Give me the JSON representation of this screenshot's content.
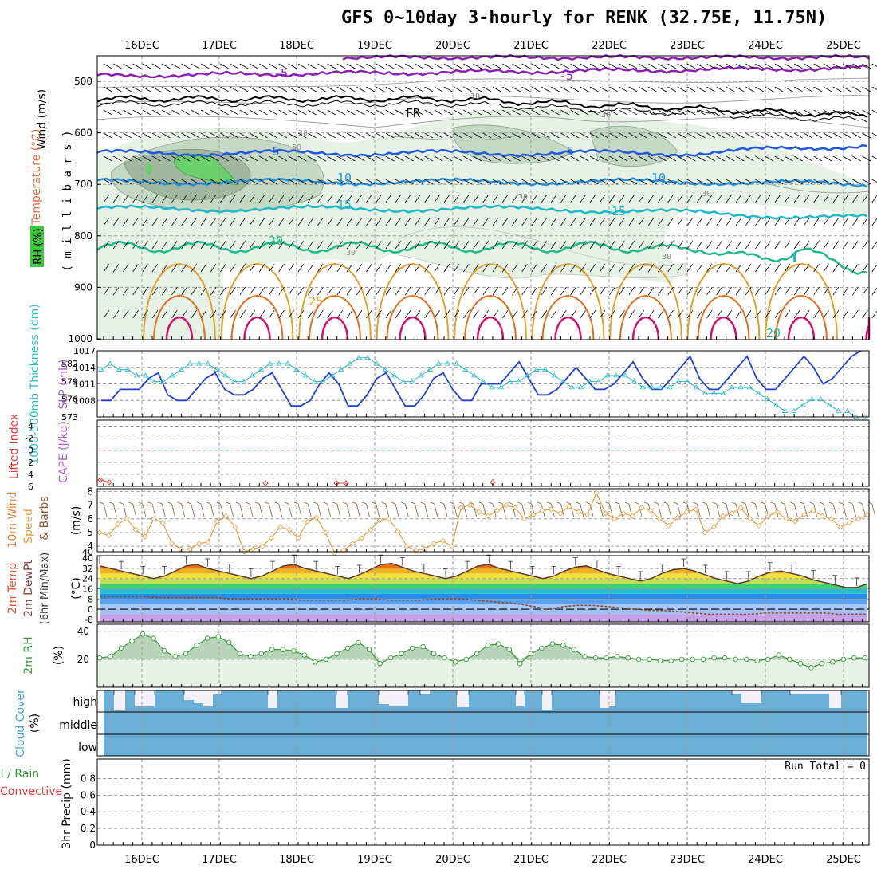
{
  "title": "GFS 0~10day 3-hourly for RENK (32.75E, 11.75N)",
  "dates": [
    "16DEC",
    "17DEC",
    "18DEC",
    "19DEC",
    "20DEC",
    "21DEC",
    "22DEC",
    "23DEC",
    "24DEC",
    "25DEC"
  ],
  "colors": {
    "grid": "#9a9a9a",
    "rh_light": "#e6f2e6",
    "rh_mid": "#c4d8c4",
    "rh_dark": "#a0b8a0",
    "rh_bright": "#6bcf6b",
    "temp_m5": "#8b1fb3",
    "temp_5": "#1f57e0",
    "temp_10": "#1f8fe0",
    "temp_15": "#1fb8c8",
    "temp_20": "#1fb88a",
    "temp_25": "#e0a030",
    "temp_30": "#e07020",
    "temp_35": "#d0106a",
    "slp": "#1f3fd0",
    "thickness": "#30b8c0",
    "wind10": "#e0a040",
    "rh2m": "#3a9a3a",
    "cloud": "#6baed6",
    "lifted": "#e04040"
  },
  "panel1": {
    "axis_label_rh": "RH (%)",
    "axis_label_temp": "Temperature (°C)",
    "axis_label_wind": "Wind (m/s)",
    "axis_label_mb": "( m i l l i b a r s )",
    "yticks": [
      "500",
      "600",
      "700",
      "800",
      "900",
      "1000"
    ],
    "contour_labels": [
      {
        "text": "-5",
        "color": "temp_m5"
      },
      {
        "text": "-5",
        "color": "temp_m5"
      },
      {
        "text": "FR",
        "color": "black"
      },
      {
        "text": "5",
        "color": "temp_5"
      },
      {
        "text": "5",
        "color": "temp_5"
      },
      {
        "text": "10",
        "color": "temp_10"
      },
      {
        "text": "10",
        "color": "temp_10"
      },
      {
        "text": "15",
        "color": "temp_15"
      },
      {
        "text": "15",
        "color": "temp_15"
      },
      {
        "text": "20",
        "color": "temp_20"
      },
      {
        "text": "20",
        "color": "temp_20"
      },
      {
        "text": "25",
        "color": "temp_25"
      },
      {
        "text": "10",
        "color": "rh_grey"
      },
      {
        "text": "30",
        "color": "rh_grey"
      },
      {
        "text": "30",
        "color": "rh_grey"
      },
      {
        "text": "30",
        "color": "rh_grey"
      },
      {
        "text": "30",
        "color": "rh_grey"
      },
      {
        "text": "30",
        "color": "rh_grey"
      },
      {
        "text": "50",
        "color": "rh_grey"
      },
      {
        "text": "30",
        "color": "rh_grey"
      }
    ]
  },
  "panel2": {
    "label_thickness": "1000-500mb Thickness (dm)",
    "label_slp": "SLP (mb)",
    "yticks_left": [
      "573",
      "576",
      "579",
      "582"
    ],
    "yticks_right": [
      "1008",
      "1011",
      "1014",
      "1017"
    ]
  },
  "panel3": {
    "label_li": "Lifted Index",
    "label_cape": "CAPE (J/kg)",
    "yticks": [
      "-4",
      "-2",
      "0",
      "2",
      "4",
      "6"
    ]
  },
  "panel4": {
    "label1": "10m Wind",
    "label2": "Speed",
    "label3": "& Barbs",
    "unit": "(m/s)",
    "yticks": [
      "4",
      "5",
      "6",
      "7",
      "8"
    ]
  },
  "panel5": {
    "label1": "2m Temp",
    "label2": "2m DewPt",
    "label3": "(6hr Min/Max)",
    "unit": "(°C)",
    "yticks": [
      "40",
      "32",
      "24",
      "16",
      "8",
      "0",
      "-8"
    ]
  },
  "panel6": {
    "label": "2m RH",
    "unit": "(%)",
    "yticks": [
      "40",
      "20"
    ]
  },
  "panel7": {
    "label": "Cloud Cover",
    "unit": "(%)",
    "levels": [
      "high",
      "middle",
      "low"
    ]
  },
  "panel8": {
    "label1": "Total / Rain",
    "label2": "Convective",
    "label3": "3hr Precip (mm)",
    "run_total": "Run Total = 0",
    "yticks": [
      "0",
      "0.2",
      "0.4",
      "0.6",
      "0.8"
    ]
  },
  "chart_data": {
    "type": "line",
    "x_labels": [
      "16DEC",
      "17DEC",
      "18DEC",
      "19DEC",
      "20DEC",
      "21DEC",
      "22DEC",
      "23DEC",
      "24DEC",
      "25DEC"
    ],
    "slp_mb": [
      1008,
      1008,
      1010,
      1010,
      1010,
      1012,
      1013,
      1009,
      1008,
      1008,
      1010,
      1012,
      1013,
      1010,
      1009,
      1009,
      1010,
      1012,
      1013,
      1010,
      1007,
      1007,
      1008,
      1011,
      1013,
      1011,
      1007,
      1007,
      1009,
      1012,
      1013,
      1010,
      1007,
      1007,
      1009,
      1012,
      1013,
      1010,
      1008,
      1008,
      1011,
      1011,
      1011,
      1013,
      1015,
      1012,
      1009,
      1009,
      1010,
      1012,
      1014,
      1012,
      1010,
      1010,
      1011,
      1013,
      1015,
      1012,
      1010,
      1010,
      1012,
      1014,
      1016,
      1012,
      1010,
      1010,
      1012,
      1014,
      1016,
      1012,
      1010,
      1010,
      1012,
      1014,
      1016,
      1014,
      1011,
      1012,
      1014,
      1016,
      1017
    ],
    "thickness_dm": [
      581,
      582,
      581,
      581,
      580,
      580,
      579,
      579,
      580,
      581,
      582,
      582,
      582,
      581,
      580,
      579,
      579,
      580,
      581,
      582,
      582,
      582,
      581,
      580,
      579,
      579,
      580,
      581,
      582,
      583,
      583,
      582,
      581,
      580,
      579,
      579,
      580,
      581,
      582,
      582,
      582,
      581,
      580,
      579,
      578,
      578,
      579,
      579,
      580,
      581,
      581,
      580,
      579,
      578,
      578,
      579,
      579,
      580,
      580,
      580,
      579,
      578,
      578,
      578,
      578,
      579,
      579,
      578,
      577,
      577,
      577,
      578,
      578,
      578,
      577,
      576,
      575,
      574,
      574,
      575,
      576,
      576,
      575,
      574,
      574,
      573,
      573
    ],
    "wind10_ms": [
      5.0,
      4.8,
      5.6,
      6.0,
      5.2,
      4.7,
      6.0,
      5.7,
      4.2,
      3.8,
      3.8,
      4.2,
      4.3,
      5.8,
      6.2,
      5.4,
      3.6,
      3.8,
      4.0,
      4.6,
      5.4,
      5.2,
      4.6,
      5.8,
      6.1,
      5.0,
      3.5,
      3.7,
      4.2,
      4.6,
      5.2,
      5.9,
      6.0,
      5.1,
      4.0,
      3.7,
      3.8,
      4.2,
      4.4,
      4.0,
      6.8,
      7.0,
      6.5,
      6.2,
      6.6,
      7.0,
      6.8,
      6.0,
      6.3,
      6.6,
      6.7,
      6.4,
      6.9,
      6.5,
      6.3,
      7.9,
      6.4,
      6.0,
      6.4,
      6.2,
      6.8,
      6.6,
      6.0,
      5.5,
      6.1,
      6.5,
      6.7,
      5.0,
      5.4,
      6.2,
      6.4,
      6.8,
      6.0,
      5.5,
      6.2,
      6.5,
      6.0,
      5.8,
      6.3,
      6.6,
      6.2,
      6.0,
      5.4,
      5.7,
      6.0,
      6.3
    ],
    "temp2m_c": [
      34,
      32,
      30,
      28,
      26,
      24,
      26,
      30,
      34,
      35,
      32,
      30,
      28,
      26,
      24,
      26,
      30,
      34,
      35,
      32,
      30,
      28,
      26,
      24,
      27,
      31,
      35,
      36,
      33,
      30,
      28,
      26,
      24,
      26,
      30,
      34,
      35,
      32,
      30,
      28,
      26,
      24,
      26,
      30,
      33,
      34,
      31,
      28,
      26,
      24,
      22,
      24,
      28,
      31,
      32,
      30,
      27,
      24,
      22,
      20,
      22,
      26,
      29,
      30,
      28,
      26,
      23,
      21,
      19,
      17,
      17,
      20
    ],
    "dewpt2m_c": [
      10,
      10,
      10,
      10,
      9,
      9,
      9,
      9,
      9,
      8,
      8,
      8,
      8,
      8,
      7,
      7,
      7,
      7,
      8,
      8,
      7,
      7,
      7,
      8,
      8,
      8,
      7,
      6,
      5,
      4,
      2,
      0,
      2,
      3,
      3,
      2,
      1,
      0,
      -1,
      -1,
      -2,
      -3,
      -4,
      -4,
      -4,
      -4,
      -3,
      -3,
      -3,
      -3,
      -3,
      -4,
      -4,
      -4
    ],
    "rh2m_pct": [
      21,
      22,
      28,
      33,
      38,
      35,
      26,
      22,
      24,
      30,
      35,
      36,
      32,
      24,
      22,
      24,
      27,
      27,
      26,
      23,
      18,
      20,
      24,
      28,
      32,
      27,
      17,
      21,
      24,
      28,
      29,
      24,
      21,
      18,
      20,
      24,
      30,
      31,
      27,
      17,
      24,
      28,
      31,
      30,
      27,
      22,
      21,
      21,
      22,
      21,
      20,
      20,
      19,
      19,
      20,
      20,
      20,
      21,
      21,
      20,
      20,
      19,
      20,
      23,
      20,
      17,
      14,
      17,
      18,
      20,
      21,
      21
    ]
  }
}
